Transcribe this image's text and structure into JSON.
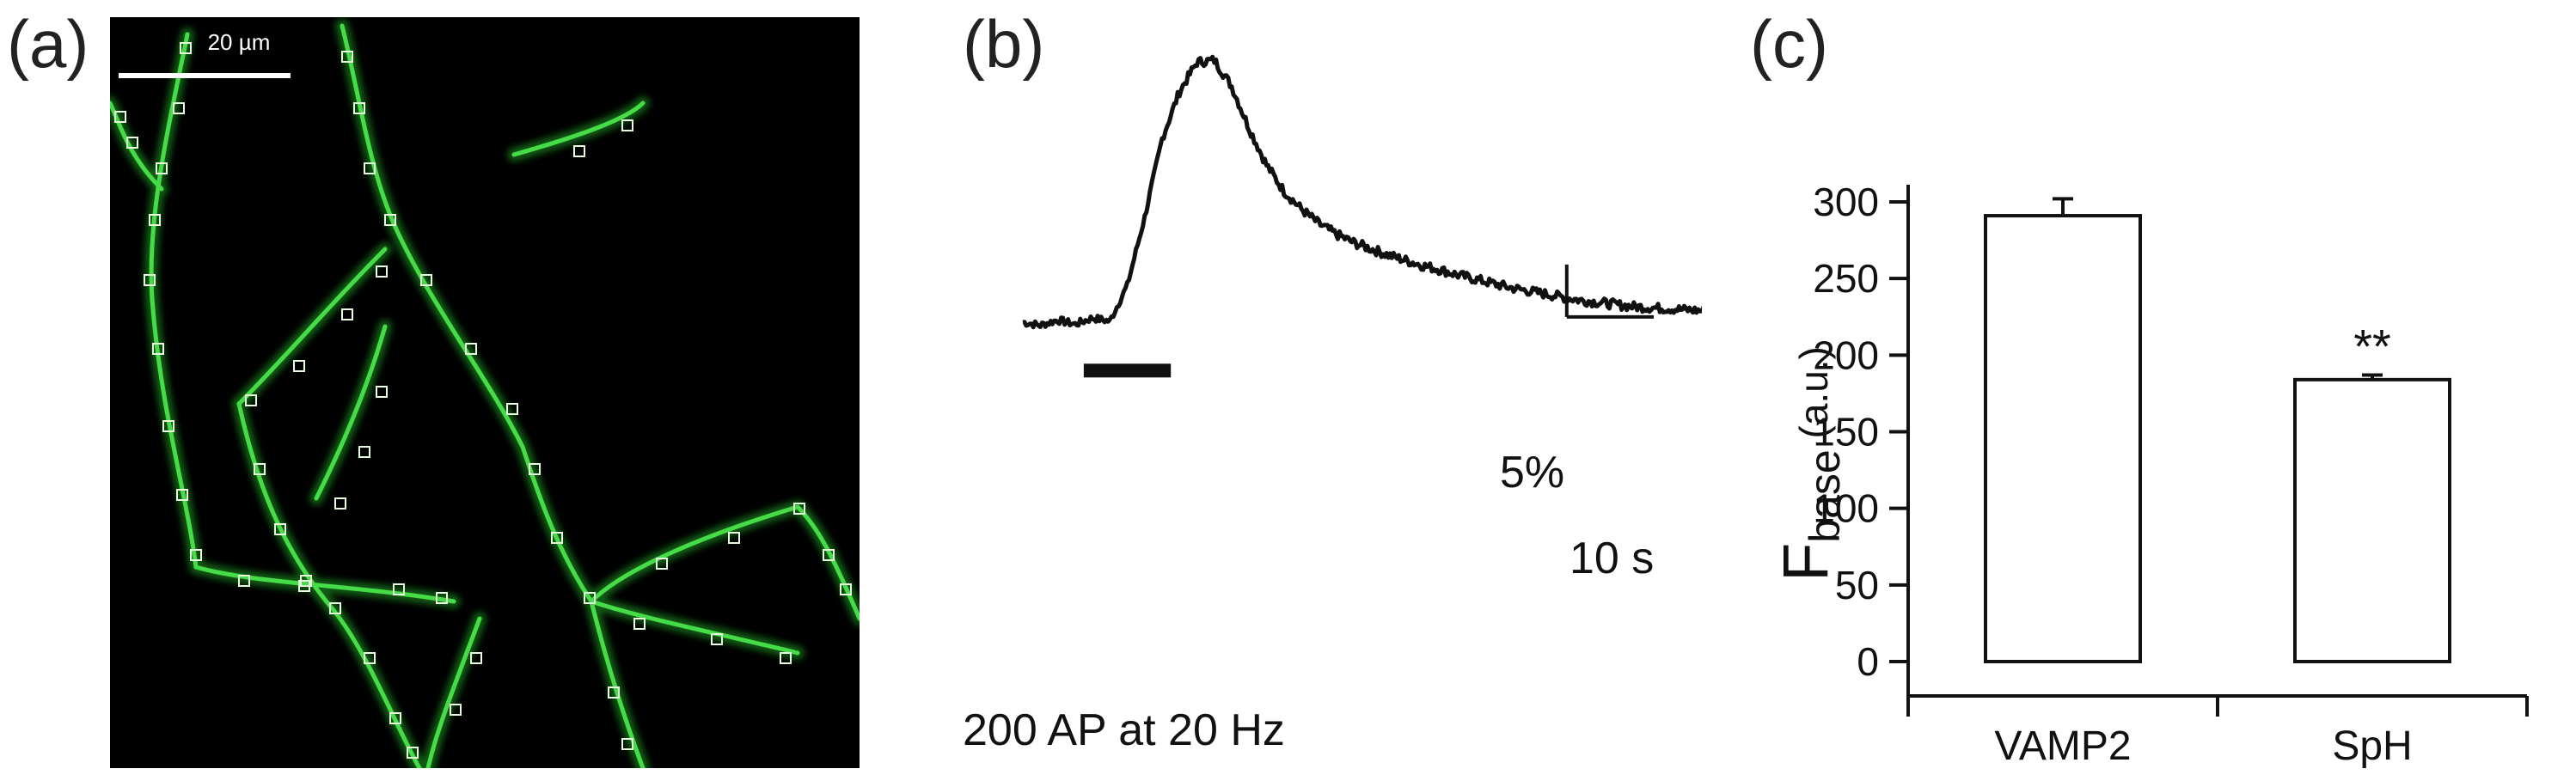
{
  "panels": {
    "a": {
      "label": "(a)",
      "scale_bar_text": "20 µm"
    },
    "b": {
      "label": "(b)",
      "scale_y_text": "5%",
      "scale_x_text": "10 s",
      "stimulus_text": "200 AP at 20 Hz"
    },
    "c": {
      "label": "(c)"
    }
  },
  "colors": {
    "fluorescence": "#38d23a",
    "roi_box": "#e8ffe0",
    "trace": "#111111",
    "bar_fill": "#ffffff",
    "bar_edge": "#111111"
  },
  "chart_data": [
    {
      "type": "line",
      "panel": "b",
      "title": "",
      "series": [
        {
          "x": [
            0,
            2,
            4,
            6,
            8,
            10,
            12,
            14,
            16,
            18,
            20,
            22,
            24,
            26,
            28,
            30,
            32,
            34,
            36,
            38,
            40,
            42,
            44,
            46,
            48,
            50,
            52,
            54,
            56,
            58,
            60,
            62,
            64,
            66,
            68,
            70,
            72,
            74,
            76,
            78,
            80
          ],
          "y": [
            0.0,
            -0.3,
            0.2,
            -0.2,
            0.4,
            0.1,
            3.5,
            10.0,
            17.5,
            22.0,
            24.8,
            25.0,
            22.5,
            18.5,
            15.0,
            12.5,
            10.8,
            9.4,
            8.4,
            7.6,
            7.0,
            6.4,
            5.9,
            5.4,
            5.0,
            4.5,
            4.1,
            3.7,
            3.3,
            3.0,
            2.7,
            2.4,
            2.1,
            1.9,
            1.7,
            1.5,
            1.4,
            1.3,
            1.2,
            1.1,
            1.0
          ]
        }
      ],
      "xlabel": "",
      "ylabel": "",
      "scalebar": {
        "y_percent": 5,
        "x_seconds": 10
      },
      "stimulus_interval": [
        7,
        17
      ]
    },
    {
      "type": "bar",
      "panel": "c",
      "title": "",
      "categories": [
        "VAMP2",
        "SpH"
      ],
      "values": [
        291,
        184
      ],
      "errors": [
        11,
        3
      ],
      "significance": [
        "",
        "**"
      ],
      "ylabel_main": "F",
      "ylabel_sub": "base",
      "ylabel_unit": " (a.u.)",
      "ylim": [
        0,
        300
      ],
      "yticks": [
        "0",
        "50",
        "100",
        "150",
        "200",
        "250",
        "300"
      ]
    }
  ]
}
